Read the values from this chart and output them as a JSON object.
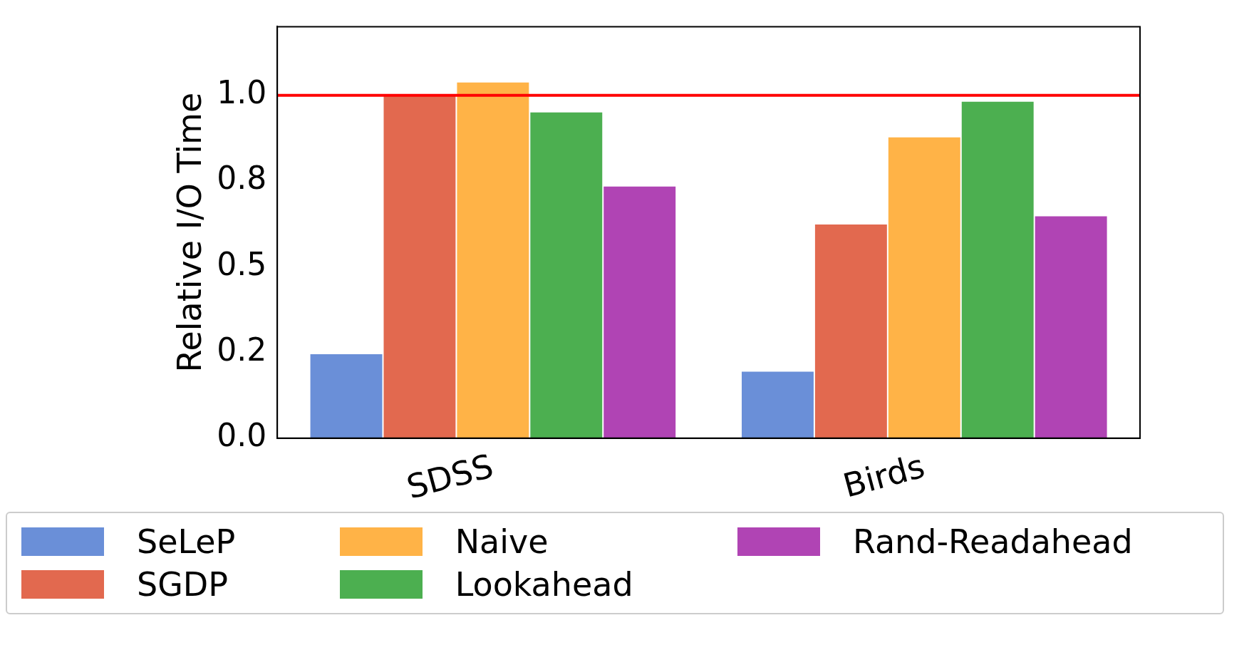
{
  "chart_data": {
    "type": "bar",
    "ylabel": "Relative I/O Time",
    "categories": [
      "SDSS",
      "Birds"
    ],
    "series": [
      {
        "name": "SeLeP",
        "color": "#6a8fd8",
        "values": [
          0.247,
          0.196
        ]
      },
      {
        "name": "SGDP",
        "color": "#e2694f",
        "values": [
          1.0,
          0.625
        ]
      },
      {
        "name": "Naive",
        "color": "#ffb347",
        "values": [
          1.039,
          0.879
        ]
      },
      {
        "name": "Lookahead",
        "color": "#4caf50",
        "values": [
          0.952,
          0.983
        ]
      },
      {
        "name": "Rand-Readahead",
        "color": "#b044b4",
        "values": [
          0.736,
          0.649
        ]
      }
    ],
    "ylim": [
      0,
      1.2
    ],
    "yticks": [
      {
        "value": 0,
        "label": "0.0"
      },
      {
        "value": 0.25,
        "label": "0.2"
      },
      0.5,
      {
        "value": 0.75,
        "label": "0.8"
      },
      {
        "value": 1,
        "label": "1.0"
      }
    ],
    "ref_lines": [
      {
        "axis": "y",
        "value": 1,
        "color": "#ff0000"
      }
    ],
    "grid": false,
    "legend": "bottom"
  }
}
